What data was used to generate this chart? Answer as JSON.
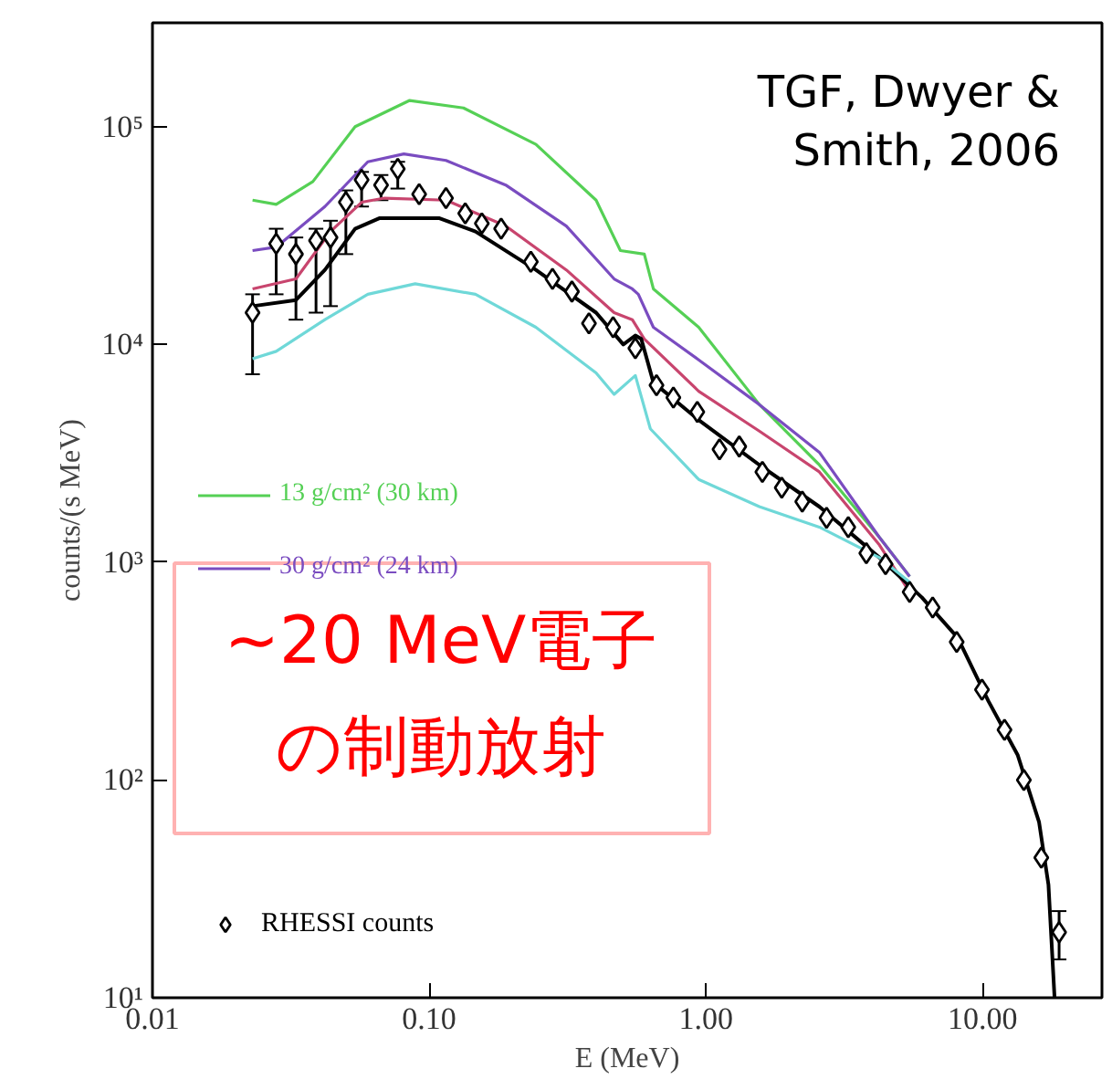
{
  "chart_data": {
    "type": "line",
    "xlabel": "E (MeV)",
    "ylabel": "counts/(s MeV)",
    "log": "xy",
    "grid": false,
    "legend": "left",
    "xlim": [
      0.01,
      27
    ],
    "ylim": [
      10,
      300000
    ],
    "xticks": [
      {
        "value": 0.01,
        "label": "0.01"
      },
      {
        "value": 0.1,
        "label": "0.10"
      },
      {
        "value": 1,
        "label": "1.00"
      },
      {
        "value": 10,
        "label": "10.00"
      }
    ],
    "yticks": [
      {
        "value": 10,
        "label": "10¹"
      },
      {
        "value": 100,
        "label": "10²"
      },
      {
        "value": 1000,
        "label": "10³"
      },
      {
        "value": 10000,
        "label": "10⁴"
      },
      {
        "value": 100000,
        "label": "10⁵"
      }
    ],
    "annotations": [
      "TGF, Dwyer & Smith, 2006",
      "~20 MeV電子",
      "の制動放射"
    ],
    "series": [
      {
        "name": "13 g/cm² (30 km)",
        "color": "#55d055",
        "x": [
          0.023,
          0.028,
          0.038,
          0.054,
          0.085,
          0.133,
          0.243,
          0.401,
          0.491,
          0.599,
          0.646,
          0.942,
          1.56,
          2.57,
          4.24,
          5.45
        ],
        "values": [
          46000,
          44000,
          56000,
          100000,
          132000,
          122000,
          83000,
          46000,
          27000,
          26000,
          18000,
          12000,
          5300,
          2800,
          1300,
          860
        ]
      },
      {
        "name": "30 g/cm² (24 km)",
        "color": "#7a4cc0",
        "x": [
          0.023,
          0.028,
          0.042,
          0.06,
          0.081,
          0.115,
          0.189,
          0.313,
          0.466,
          0.542,
          0.57,
          0.646,
          0.942,
          1.56,
          2.57,
          4.24,
          5.45
        ],
        "values": [
          27000,
          28000,
          43000,
          69000,
          75000,
          70000,
          54000,
          35000,
          20000,
          18000,
          17000,
          12000,
          8500,
          5300,
          3200,
          1300,
          860
        ]
      },
      {
        "color": "#c8456e",
        "x": [
          0.023,
          0.033,
          0.044,
          0.057,
          0.069,
          0.115,
          0.189,
          0.313,
          0.466,
          0.542,
          0.599,
          0.942,
          1.56,
          2.57,
          4.24,
          5.45
        ],
        "values": [
          18000,
          20000,
          33000,
          45000,
          47000,
          46000,
          35000,
          22000,
          14000,
          13000,
          10600,
          6100,
          4000,
          2600,
          1200,
          730
        ]
      },
      {
        "color": "#000000",
        "x": [
          0.023,
          0.033,
          0.042,
          0.054,
          0.066,
          0.109,
          0.147,
          0.243,
          0.401,
          0.503,
          0.556,
          0.584,
          0.646,
          0.942,
          1.56,
          2.57,
          4.24,
          6.03,
          8.13,
          10.5,
          13.4,
          16.0,
          17.3,
          18.2
        ],
        "values": [
          15000,
          16000,
          22000,
          34000,
          38000,
          38000,
          33000,
          22000,
          14000,
          10000,
          11000,
          10600,
          6700,
          4500,
          2800,
          1800,
          1050,
          690,
          450,
          230,
          130,
          64,
          33,
          10
        ]
      },
      {
        "color": "#6fd8d8",
        "x": [
          0.023,
          0.028,
          0.042,
          0.06,
          0.089,
          0.147,
          0.243,
          0.401,
          0.466,
          0.556,
          0.63,
          0.942,
          1.56,
          2.57,
          4.24,
          5.45
        ],
        "values": [
          8600,
          9300,
          13000,
          17000,
          19000,
          17000,
          12000,
          7400,
          5900,
          7200,
          4100,
          2400,
          1800,
          1450,
          1050,
          810
        ]
      },
      {
        "name": "RHESSI counts",
        "type": "scatter",
        "marker": "diamond",
        "color": "#000000",
        "x": [
          0.023,
          0.028,
          0.033,
          0.039,
          0.044,
          0.05,
          0.057,
          0.067,
          0.077,
          0.092,
          0.115,
          0.135,
          0.155,
          0.182,
          0.233,
          0.279,
          0.328,
          0.378,
          0.462,
          0.556,
          0.663,
          0.763,
          0.931,
          1.12,
          1.32,
          1.6,
          1.88,
          2.23,
          2.73,
          3.27,
          3.8,
          4.46,
          5.45,
          6.6,
          8.06,
          9.95,
          12.0,
          14.1,
          16.3,
          18.9
        ],
        "values": [
          14000,
          29000,
          26000,
          30000,
          31000,
          45000,
          57000,
          54000,
          64000,
          49000,
          47000,
          40000,
          36000,
          34000,
          24000,
          20000,
          17500,
          12500,
          12000,
          9600,
          6500,
          5700,
          4900,
          3300,
          3400,
          2600,
          2200,
          1900,
          1600,
          1450,
          1100,
          980,
          730,
          620,
          430,
          260,
          170,
          100,
          44,
          20
        ],
        "errors": [
          [
            7300,
            17000
          ],
          [
            17000,
            34000
          ],
          [
            13000,
            31000
          ],
          [
            14000,
            34000
          ],
          [
            15000,
            37000
          ],
          [
            26000,
            51000
          ],
          [
            43000,
            62000
          ],
          [
            46000,
            60000
          ],
          [
            52000,
            69000
          ],
          null,
          null,
          null,
          null,
          null,
          null,
          null,
          null,
          null,
          null,
          null,
          null,
          null,
          null,
          null,
          null,
          null,
          null,
          null,
          null,
          null,
          null,
          null,
          null,
          null,
          null,
          null,
          null,
          null,
          null,
          [
            15,
            25
          ]
        ]
      }
    ]
  }
}
